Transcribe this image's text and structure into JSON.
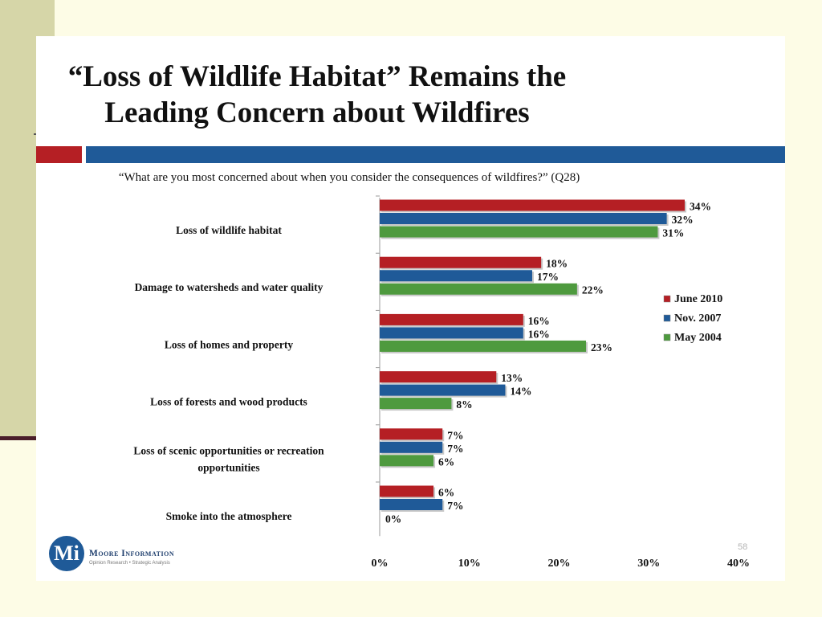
{
  "slide": {
    "title_line1": "“Loss of Wildlife Habitat” Remains the",
    "title_line2": "Leading Concern about Wildfires",
    "question": "“What are you most concerned about when you consider the consequences of wildfires?” (Q28)",
    "page_number": "58",
    "logo_name": "Moore Information",
    "logo_tagline": "Opinion Research • Strategic Analysis",
    "logo_letter": "Mi"
  },
  "colors": {
    "red": "#b51f24",
    "blue": "#1f5a98",
    "green": "#4e9a3e",
    "side_panel": "#d6d6a8",
    "background": "#fdfce6"
  },
  "chart_data": {
    "type": "bar",
    "orientation": "horizontal",
    "categories": [
      "Loss of wildlife habitat",
      "Damage to watersheds and water quality",
      "Loss of homes and property",
      "Loss of forests and wood products",
      "Loss of scenic opportunities or recreation opportunities",
      "Smoke into the atmosphere"
    ],
    "category_lines": [
      [
        "Loss of wildlife habitat"
      ],
      [
        "Damage to watersheds and water quality"
      ],
      [
        "Loss of homes and property"
      ],
      [
        "Loss of forests and wood products"
      ],
      [
        "Loss of scenic opportunities or recreation",
        "opportunities"
      ],
      [
        "Smoke into the atmosphere"
      ]
    ],
    "series": [
      {
        "name": "June 2010",
        "color": "#b51f24",
        "values": [
          34,
          18,
          16,
          13,
          7,
          6
        ],
        "labels": [
          "34%",
          "18%",
          "16%",
          "13%",
          "7%",
          "6%"
        ]
      },
      {
        "name": "Nov. 2007",
        "color": "#1f5a98",
        "values": [
          32,
          17,
          16,
          14,
          7,
          7
        ],
        "labels": [
          "32%",
          "17%",
          "16%",
          "14%",
          "7%",
          "7%"
        ]
      },
      {
        "name": "May 2004",
        "color": "#4e9a3e",
        "values": [
          31,
          22,
          23,
          8,
          6,
          0
        ],
        "labels": [
          "31%",
          "22%",
          "23%",
          "8%",
          "6%",
          "0%"
        ]
      }
    ],
    "xlim": [
      0,
      40
    ],
    "xticks": [
      "0%",
      "10%",
      "20%",
      "30%",
      "40%"
    ],
    "xtick_values": [
      0,
      10,
      20,
      30,
      40
    ],
    "legend_position": "right",
    "grid": false
  }
}
